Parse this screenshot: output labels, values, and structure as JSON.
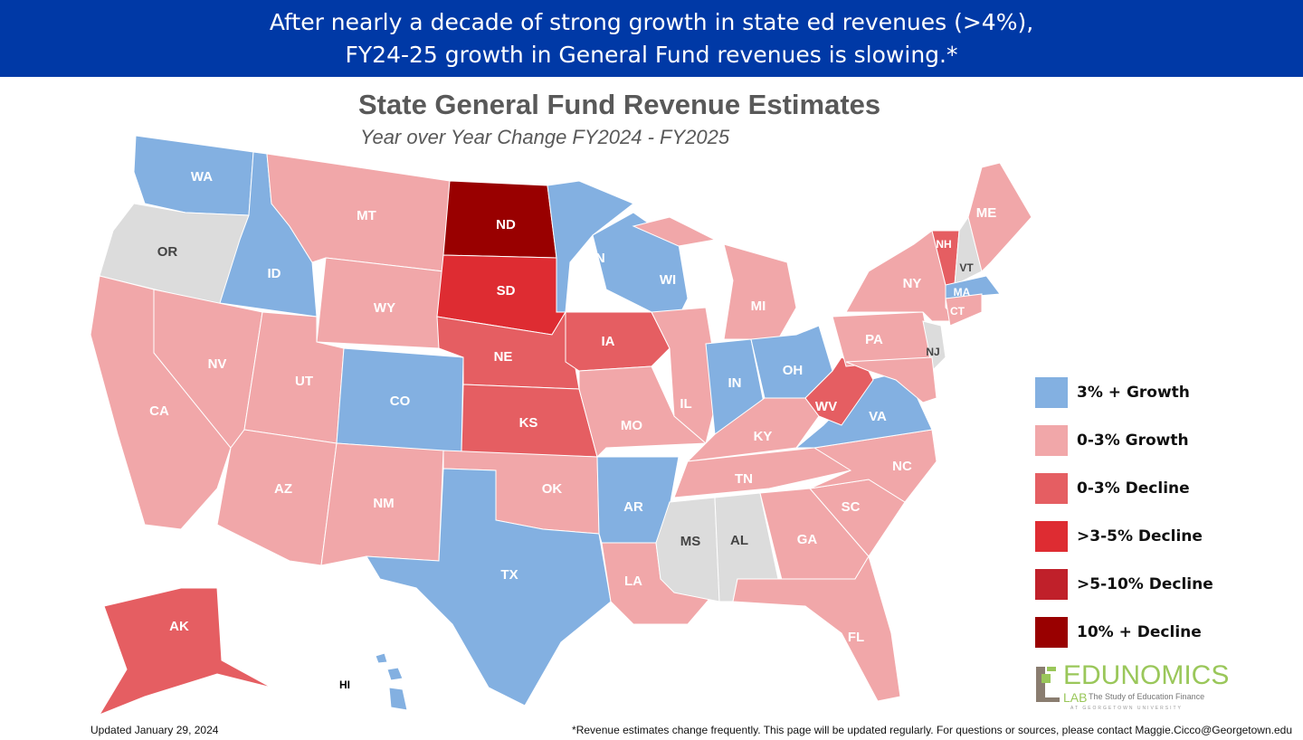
{
  "banner": {
    "line1": "After nearly a decade of strong growth in state ed revenues (>4%),",
    "line2": "FY24-25 growth in General Fund revenues is slowing.*"
  },
  "title": "State General Fund Revenue Estimates",
  "subtitle": "Year over Year Change FY2024 - FY2025",
  "categories": {
    "growth3": {
      "label": "3% + Growth",
      "color": "#83b0e1"
    },
    "growth0_3": {
      "label": "0-3% Growth",
      "color": "#f1a7a9"
    },
    "decline0_3": {
      "label": "0-3% Decline",
      "color": "#e55e62"
    },
    "decline3_5": {
      "label": ">3-5% Decline",
      "color": "#de2c32"
    },
    "decline5_10": {
      "label": ">5-10% Decline",
      "color": "#c0202a"
    },
    "decline10": {
      "label": "10% + Decline",
      "color": "#990000"
    },
    "nodata": {
      "label": "",
      "color": "#dcdcdc"
    }
  },
  "legend": [
    "growth3",
    "growth0_3",
    "decline0_3",
    "decline3_5",
    "decline5_10",
    "decline10"
  ],
  "states": [
    {
      "code": "WA",
      "cat": "growth3"
    },
    {
      "code": "OR",
      "cat": "nodata"
    },
    {
      "code": "ID",
      "cat": "growth3"
    },
    {
      "code": "MT",
      "cat": "growth0_3"
    },
    {
      "code": "WY",
      "cat": "growth0_3"
    },
    {
      "code": "CA",
      "cat": "growth0_3"
    },
    {
      "code": "NV",
      "cat": "growth0_3"
    },
    {
      "code": "UT",
      "cat": "growth0_3"
    },
    {
      "code": "AZ",
      "cat": "growth0_3"
    },
    {
      "code": "CO",
      "cat": "growth3"
    },
    {
      "code": "NM",
      "cat": "growth0_3"
    },
    {
      "code": "ND",
      "cat": "decline10"
    },
    {
      "code": "SD",
      "cat": "decline3_5"
    },
    {
      "code": "NE",
      "cat": "decline0_3"
    },
    {
      "code": "KS",
      "cat": "decline0_3"
    },
    {
      "code": "OK",
      "cat": "growth0_3"
    },
    {
      "code": "TX",
      "cat": "growth3"
    },
    {
      "code": "MN",
      "cat": "growth3"
    },
    {
      "code": "IA",
      "cat": "decline0_3"
    },
    {
      "code": "MO",
      "cat": "growth0_3"
    },
    {
      "code": "AR",
      "cat": "growth3"
    },
    {
      "code": "LA",
      "cat": "growth0_3"
    },
    {
      "code": "WI",
      "cat": "growth3"
    },
    {
      "code": "IL",
      "cat": "growth0_3"
    },
    {
      "code": "IN",
      "cat": "growth3"
    },
    {
      "code": "MI",
      "cat": "growth0_3"
    },
    {
      "code": "OH",
      "cat": "growth3"
    },
    {
      "code": "KY",
      "cat": "growth0_3"
    },
    {
      "code": "TN",
      "cat": "growth0_3"
    },
    {
      "code": "MS",
      "cat": "nodata"
    },
    {
      "code": "AL",
      "cat": "nodata"
    },
    {
      "code": "GA",
      "cat": "growth0_3"
    },
    {
      "code": "FL",
      "cat": "growth0_3"
    },
    {
      "code": "SC",
      "cat": "growth0_3"
    },
    {
      "code": "NC",
      "cat": "growth0_3"
    },
    {
      "code": "VA",
      "cat": "growth3"
    },
    {
      "code": "WV",
      "cat": "decline0_3"
    },
    {
      "code": "PA",
      "cat": "growth0_3"
    },
    {
      "code": "NY",
      "cat": "growth0_3"
    },
    {
      "code": "NJ",
      "cat": "nodata"
    },
    {
      "code": "MD",
      "cat": "growth0_3"
    },
    {
      "code": "NH",
      "cat": "decline0_3"
    },
    {
      "code": "VT",
      "cat": "nodata"
    },
    {
      "code": "MA",
      "cat": "growth3"
    },
    {
      "code": "CT",
      "cat": "growth0_3"
    },
    {
      "code": "ME",
      "cat": "growth0_3"
    },
    {
      "code": "AK",
      "cat": "decline0_3"
    },
    {
      "code": "HI",
      "cat": "growth3"
    }
  ],
  "footer": {
    "updated": "Updated January 29, 2024",
    "note": "*Revenue estimates change frequently. This page will be updated regularly. For questions or sources, please contact Maggie.Cicco@Georgetown.edu"
  },
  "logo": {
    "name": "EDUNOMICS",
    "lab": "LAB",
    "tagline": "The Study of Education Finance",
    "affiliation": "AT GEORGETOWN UNIVERSITY"
  }
}
